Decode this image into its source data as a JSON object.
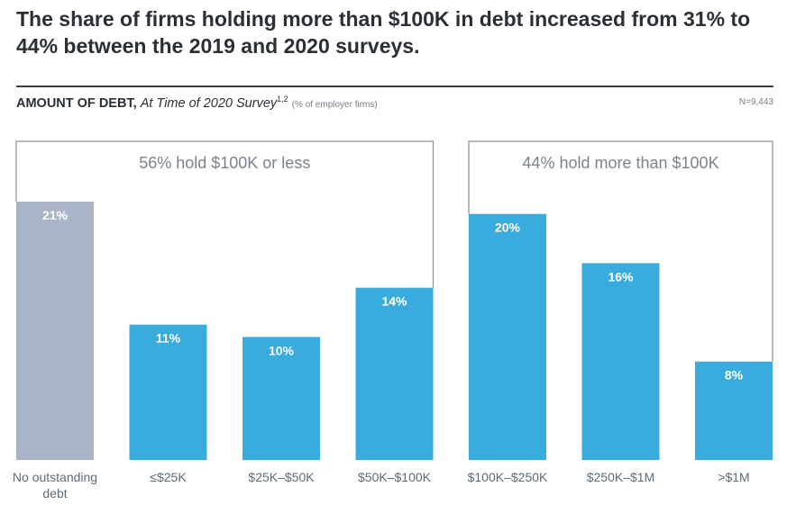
{
  "headline": "The share of firms holding more than $100K in debt increased from 31% to 44% between the 2019 and 2020 surveys.",
  "subtitle": {
    "bold": "AMOUNT OF DEBT,",
    "italic": "At Time of 2020 Survey",
    "sup": "1,2",
    "small": "(% of employer firms)"
  },
  "n_label": "N=9,443",
  "colors": {
    "gray": "#a9b5c6",
    "blue": "#3aabdd",
    "bracket": "#8e959d",
    "text": "#2b3036",
    "axis": "#5c6b7a"
  },
  "chart_data": {
    "type": "bar",
    "categories": [
      "No outstanding debt",
      "≤$25K",
      "$25K–$50K",
      "$50K–$100K",
      "$100K–$250K",
      "$250K–$1M",
      ">$1M"
    ],
    "category_lines": [
      [
        "No outstanding",
        "debt"
      ],
      [
        "≤$25K"
      ],
      [
        "$25K–$50K"
      ],
      [
        "$50K–$100K"
      ],
      [
        "$100K–$250K"
      ],
      [
        "$250K–$1M"
      ],
      [
        ">$1M"
      ]
    ],
    "values": [
      21,
      11,
      10,
      14,
      20,
      16,
      8
    ],
    "value_labels": [
      "21%",
      "11%",
      "10%",
      "14%",
      "20%",
      "16%",
      "8%"
    ],
    "bar_colors": [
      "#a9b5c6",
      "#3aabdd",
      "#3aabdd",
      "#3aabdd",
      "#3aabdd",
      "#3aabdd",
      "#3aabdd"
    ],
    "ylim": [
      0,
      21
    ],
    "annotations": [
      {
        "text": "56% hold $100K or less",
        "from": 0,
        "to": 3
      },
      {
        "text": "44% hold more than $100K",
        "from": 4,
        "to": 6
      }
    ],
    "grid": false,
    "legend": "none"
  }
}
